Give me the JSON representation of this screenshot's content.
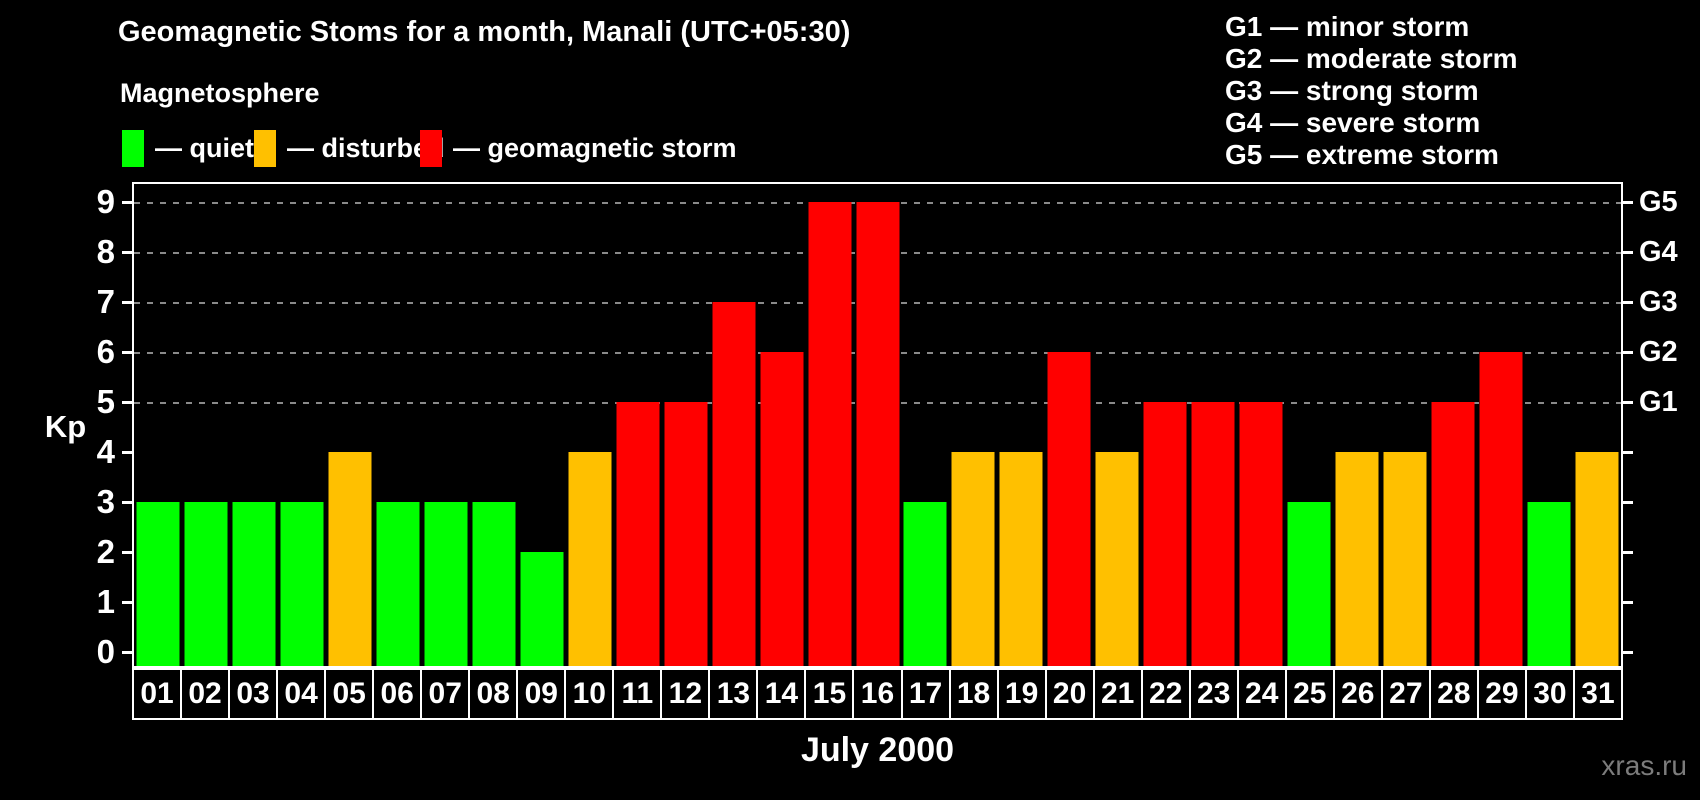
{
  "title": "Geomagnetic Stoms for a month, Manali (UTC+05:30)",
  "legend": {
    "heading": "Magnetosphere",
    "items": [
      {
        "label": "— quiet",
        "status": "quiet",
        "color": "#00ff00"
      },
      {
        "label": "— disturbed",
        "status": "disturbed",
        "color": "#ffc000"
      },
      {
        "label": "— geomagnetic storm",
        "status": "storm",
        "color": "#ff0000"
      }
    ]
  },
  "g_scale_legend": [
    "G1 — minor storm",
    "G2 — moderate storm",
    "G3 — strong storm",
    "G4 — severe storm",
    "G5 — extreme storm"
  ],
  "watermark": "xras.ru",
  "chart_data": {
    "type": "bar",
    "title": "Geomagnetic Stoms for a month, Manali (UTC+05:30)",
    "xlabel": "July 2000",
    "ylabel": "Kp",
    "ylim": [
      0,
      9
    ],
    "yticks": [
      0,
      1,
      2,
      3,
      4,
      5,
      6,
      7,
      8,
      9
    ],
    "gridlines_at": [
      5,
      6,
      7,
      8,
      9
    ],
    "grid_style": "dashed-gray",
    "legend_position": "top-left",
    "right_axis_labels": [
      {
        "label": "G1",
        "kp": 5
      },
      {
        "label": "G2",
        "kp": 6
      },
      {
        "label": "G3",
        "kp": 7
      },
      {
        "label": "G4",
        "kp": 8
      },
      {
        "label": "G5",
        "kp": 9
      }
    ],
    "categories": [
      "01",
      "02",
      "03",
      "04",
      "05",
      "06",
      "07",
      "08",
      "09",
      "10",
      "11",
      "12",
      "13",
      "14",
      "15",
      "16",
      "17",
      "18",
      "19",
      "20",
      "21",
      "22",
      "23",
      "24",
      "25",
      "26",
      "27",
      "28",
      "29",
      "30",
      "31"
    ],
    "values": [
      3,
      3,
      3,
      3,
      4,
      3,
      3,
      3,
      2,
      4,
      5,
      5,
      7,
      6,
      9,
      9,
      3,
      4,
      4,
      6,
      4,
      5,
      5,
      5,
      3,
      4,
      4,
      5,
      6,
      3,
      4
    ],
    "statuses": [
      "quiet",
      "quiet",
      "quiet",
      "quiet",
      "disturbed",
      "quiet",
      "quiet",
      "quiet",
      "quiet",
      "disturbed",
      "storm",
      "storm",
      "storm",
      "storm",
      "storm",
      "storm",
      "quiet",
      "disturbed",
      "disturbed",
      "storm",
      "disturbed",
      "storm",
      "storm",
      "storm",
      "quiet",
      "disturbed",
      "disturbed",
      "storm",
      "storm",
      "quiet",
      "disturbed"
    ],
    "colors": {
      "quiet": "#00ff00",
      "disturbed": "#ffc000",
      "storm": "#ff0000"
    }
  }
}
